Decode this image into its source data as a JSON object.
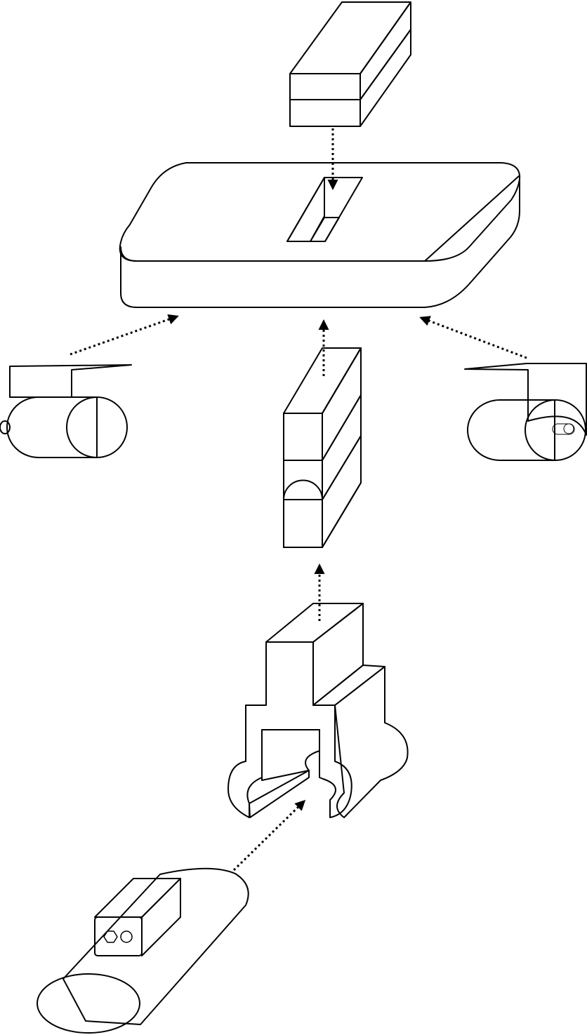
{
  "diagram": {
    "colors": {
      "background": "#ffffff",
      "outline": "#000000",
      "base_plate_top": "#cba98e",
      "blue_block_light": "#6b9fff",
      "blue_block_dark": "#3366cc",
      "clamp_face": "#c0c0c0",
      "clamp_band": "#8033ff",
      "gray_roller": "#9e9e9a",
      "bracket": "#000000",
      "channel_front": "#9e9e9a",
      "channel_side": "#c4c4c0",
      "channel_inner": "#76767a",
      "tube": "#3384e0",
      "tube_end": "#1a6cd4",
      "connector_top": "#ff9f48",
      "connector_face": "#9b9b9b"
    },
    "components": [
      "blue-block",
      "base-plate",
      "left-roller-assembly",
      "right-roller-assembly",
      "clamp-block",
      "channel-bracket",
      "tube-with-connector"
    ],
    "arrow_style": "dotted"
  }
}
